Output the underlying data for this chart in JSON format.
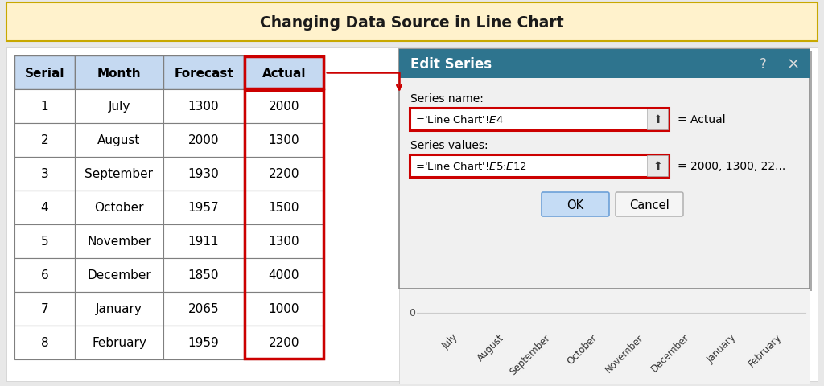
{
  "title": "Changing Data Source in Line Chart",
  "title_bg": "#FFF2CC",
  "title_border": "#C8A800",
  "title_color": "#1a1a1a",
  "table_headers": [
    "Serial",
    "Month",
    "Forecast",
    "Actual"
  ],
  "table_rows": [
    [
      "1",
      "July",
      "1300",
      "2000"
    ],
    [
      "2",
      "August",
      "2000",
      "1300"
    ],
    [
      "3",
      "September",
      "1930",
      "2200"
    ],
    [
      "4",
      "October",
      "1957",
      "1500"
    ],
    [
      "5",
      "November",
      "1911",
      "1300"
    ],
    [
      "6",
      "December",
      "1850",
      "4000"
    ],
    [
      "7",
      "January",
      "2065",
      "1000"
    ],
    [
      "8",
      "February",
      "1959",
      "2200"
    ]
  ],
  "header_bg": "#C5D9F1",
  "header_text_color": "#000000",
  "cell_border_color": "#7F7F7F",
  "actual_col_highlight": "#CC0000",
  "dialog_title": "Edit Series",
  "dialog_title_bg": "#2E748E",
  "dialog_title_text": "#FFFFFF",
  "dialog_bg": "#F0F0F0",
  "dialog_content_bg": "#FFFFFF",
  "label_series_name": "Series ̲name:",
  "label_series_values": "Series ̲values:",
  "field_series_name": "='Line Chart'!$E$4",
  "field_series_values": "='Line Chart'!$E$5:$E$12",
  "eq_actual": "= Actual",
  "eq_values": "= 2000, 1300, 22...",
  "btn_ok": "OK",
  "btn_cancel": "Cancel",
  "chart_months": [
    "July",
    "August",
    "September",
    "October",
    "November",
    "December",
    "January",
    "February"
  ],
  "chart_zero_label": "0",
  "outer_bg": "#E8E8E8",
  "white_bg": "#FFFFFF"
}
